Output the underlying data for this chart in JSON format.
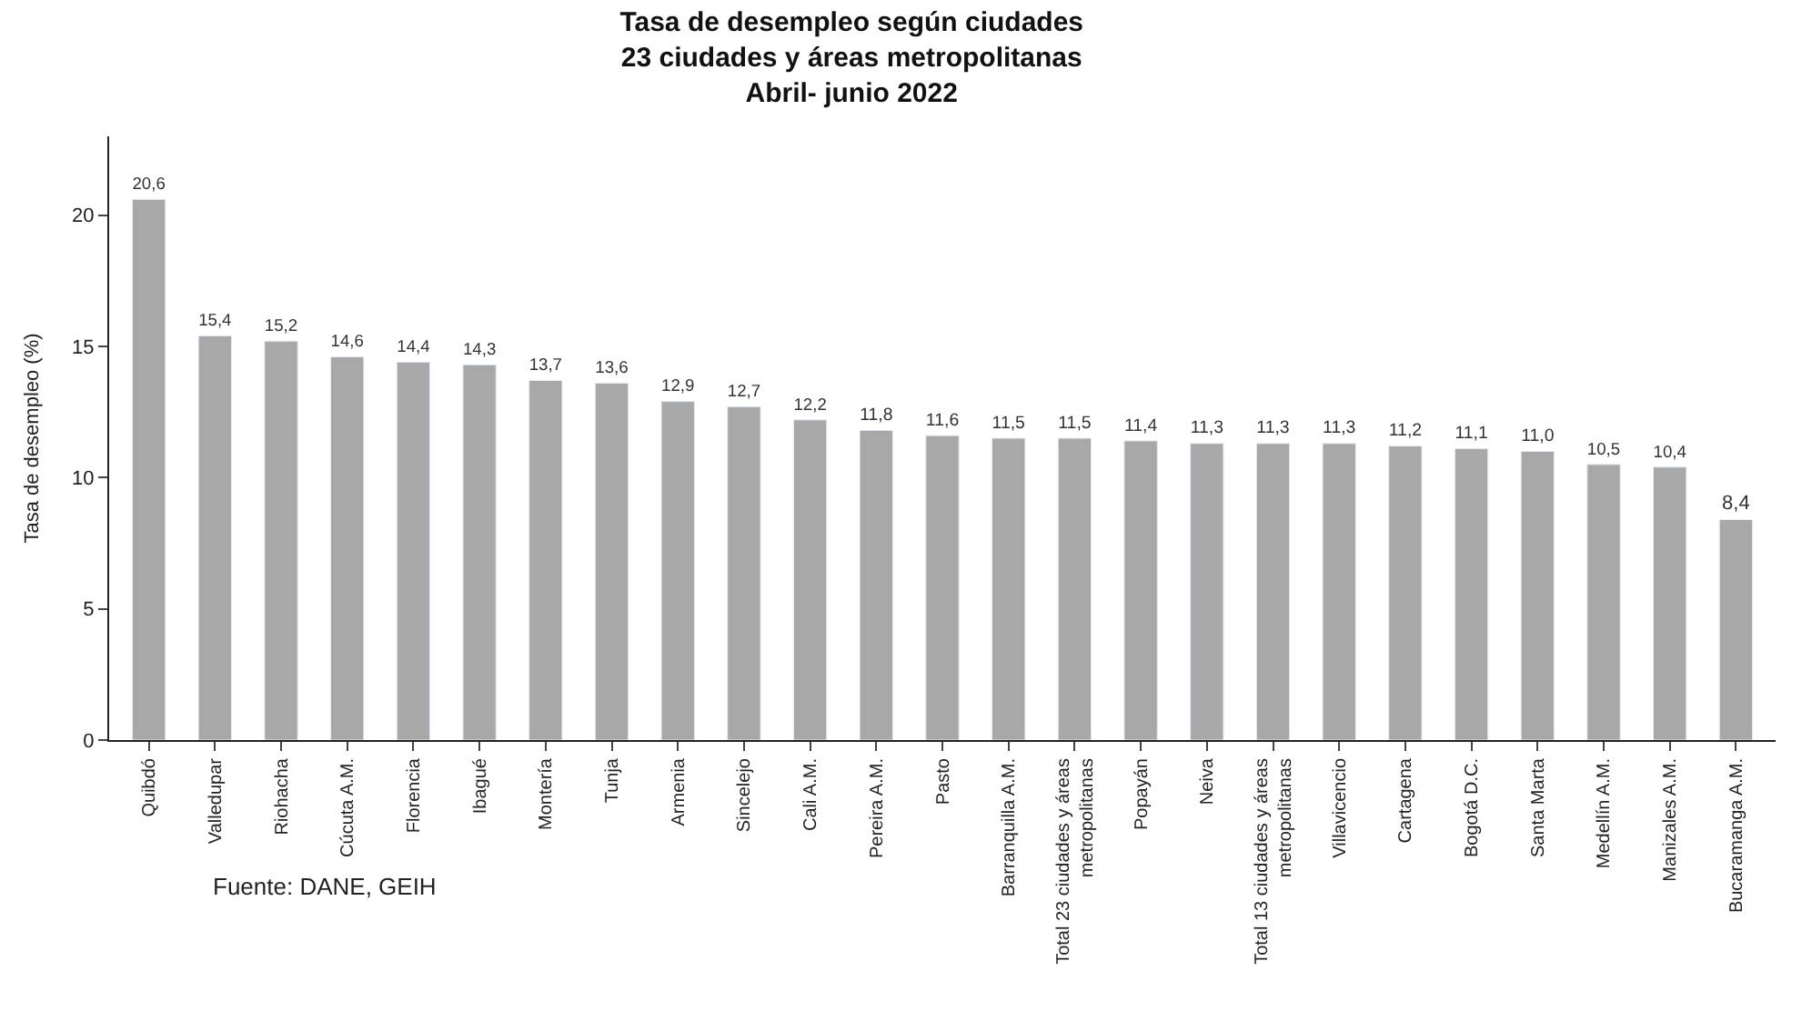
{
  "chart_data": {
    "type": "bar",
    "title": "Tasa de desempleo según ciudades\n23 ciudades y áreas metropolitanas\nAbril- junio 2022",
    "ylabel": "Tasa de desempleo (%)",
    "categories": [
      "Quibdó",
      "Valledupar",
      "Riohacha",
      "Cúcuta A.M.",
      "Florencia",
      "Ibagué",
      "Montería",
      "Tunja",
      "Armenia",
      "Sincelejo",
      "Cali A.M.",
      "Pereira A.M.",
      "Pasto",
      "Barranquilla A.M.",
      "Total 23 ciudades y áreas\nmetropolitanas",
      "Popayán",
      "Neiva",
      "Total 13 ciudades y áreas\nmetropolitanas",
      "Villavicencio",
      "Cartagena",
      "Bogotá D.C.",
      "Santa Marta",
      "Medellín A.M.",
      "Manizales A.M.",
      "Bucaramanga A.M."
    ],
    "values": [
      20.6,
      15.4,
      15.2,
      14.6,
      14.4,
      14.3,
      13.7,
      13.6,
      12.9,
      12.7,
      12.2,
      11.8,
      11.6,
      11.5,
      11.5,
      11.4,
      11.3,
      11.3,
      11.3,
      11.2,
      11.1,
      11.0,
      10.5,
      10.4,
      8.4
    ],
    "value_labels": [
      "20,6",
      "15,4",
      "15,2",
      "14,6",
      "14,4",
      "14,3",
      "13,7",
      "13,6",
      "12,9",
      "12,7",
      "12,2",
      "11,8",
      "11,6",
      "11,5",
      "11,5",
      "11,4",
      "11,3",
      "11,3",
      "11,3",
      "11,2",
      "11,1",
      "11,0",
      "10,5",
      "10,4",
      "8,4"
    ],
    "color": "#a8a8a8",
    "ylim": [
      0,
      23
    ],
    "yticks": [
      0,
      5,
      10,
      15,
      20
    ],
    "annotations": [
      "Fuente: DANE, GEIH"
    ]
  }
}
